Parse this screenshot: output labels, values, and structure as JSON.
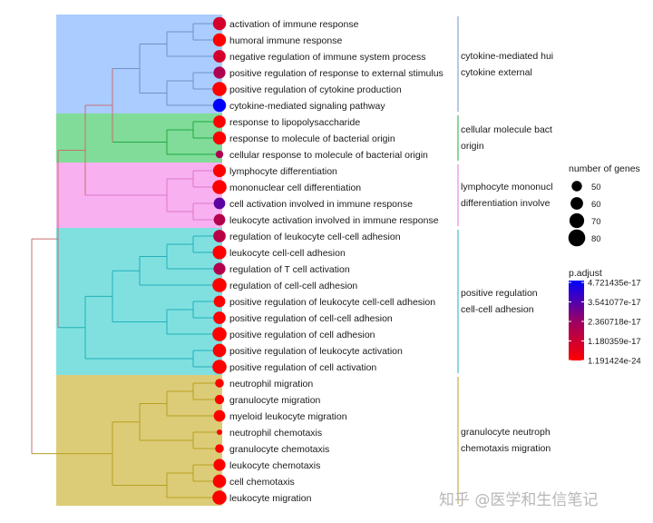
{
  "chart_data": {
    "type": "treeplot",
    "leaves": [
      {
        "label": "activation of immune response",
        "count": 75,
        "p_adjust": 8e-18
      },
      {
        "label": "humoral immune response",
        "count": 75,
        "p_adjust": 2e-20
      },
      {
        "label": "negative regulation of immune system process",
        "count": 72,
        "p_adjust": 8e-18
      },
      {
        "label": "positive regulation of response to external stimulus",
        "count": 70,
        "p_adjust": 1.5e-17
      },
      {
        "label": "positive regulation of cytokine production",
        "count": 80,
        "p_adjust": 1e-21
      },
      {
        "label": "cytokine-mediated signaling pathway",
        "count": 75,
        "p_adjust": 4.72e-17
      },
      {
        "label": "response to lipopolysaccharide",
        "count": 72,
        "p_adjust": 1e-21
      },
      {
        "label": "response to molecule of bacterial origin",
        "count": 75,
        "p_adjust": 1e-21
      },
      {
        "label": "cellular response to molecule of bacterial origin",
        "count": 50,
        "p_adjust": 1.5e-17
      },
      {
        "label": "lymphocyte differentiation",
        "count": 74,
        "p_adjust": 1e-20
      },
      {
        "label": "mononuclear cell differentiation",
        "count": 80,
        "p_adjust": 1e-20
      },
      {
        "label": "cell activation involved in immune response",
        "count": 68,
        "p_adjust": 3e-17
      },
      {
        "label": "leukocyte activation involved in immune response",
        "count": 68,
        "p_adjust": 1.4e-17
      },
      {
        "label": "regulation of leukocyte cell-cell adhesion",
        "count": 72,
        "p_adjust": 1.3e-17
      },
      {
        "label": "leukocyte cell-cell adhesion",
        "count": 78,
        "p_adjust": 1e-20
      },
      {
        "label": "regulation of T cell activation",
        "count": 70,
        "p_adjust": 1.4e-17
      },
      {
        "label": "regulation of cell-cell adhesion",
        "count": 80,
        "p_adjust": 1e-20
      },
      {
        "label": "positive regulation of leukocyte cell-cell adhesion",
        "count": 68,
        "p_adjust": 1e-21
      },
      {
        "label": "positive regulation of cell-cell adhesion",
        "count": 72,
        "p_adjust": 1e-21
      },
      {
        "label": "positive regulation of cell adhesion",
        "count": 80,
        "p_adjust": 1e-21
      },
      {
        "label": "positive regulation of leukocyte activation",
        "count": 76,
        "p_adjust": 1e-21
      },
      {
        "label": "positive regulation of cell activation",
        "count": 80,
        "p_adjust": 1e-21
      },
      {
        "label": "neutrophil migration",
        "count": 55,
        "p_adjust": 1e-22
      },
      {
        "label": "granulocyte migration",
        "count": 58,
        "p_adjust": 1e-22
      },
      {
        "label": "myeloid leukocyte migration",
        "count": 68,
        "p_adjust": 1e-22
      },
      {
        "label": "neutrophil chemotaxis",
        "count": 40,
        "p_adjust": 1e-22
      },
      {
        "label": "granulocyte chemotaxis",
        "count": 55,
        "p_adjust": 1e-22
      },
      {
        "label": "leukocyte chemotaxis",
        "count": 70,
        "p_adjust": 1e-22
      },
      {
        "label": "cell chemotaxis",
        "count": 76,
        "p_adjust": 1e-22
      },
      {
        "label": "leukocyte migration",
        "count": 80,
        "p_adjust": 1e-24
      }
    ],
    "tree": [
      [
        [
          [
            [
              [
                [
                  0,
                  1
                ],
                2
              ],
              [
                [
                  3,
                  4
                ],
                5
              ]
            ],
            [
              [
                6,
                7
              ],
              8
            ]
          ],
          [
            [
              9,
              10
            ],
            [
              11,
              12
            ]
          ]
        ],
        [
          [
            [
              [
                [
                  13,
                  14
                ],
                15
              ],
              16
            ],
            [
              [
                17,
                18
              ],
              19
            ]
          ],
          [
            20,
            21
          ]
        ]
      ],
      [
        [
          [
            [
              22,
              23
            ],
            24
          ],
          [
            25,
            26
          ]
        ],
        [
          [
            27,
            28
          ],
          29
        ]
      ]
    ],
    "clusters": [
      {
        "rows": [
          0,
          5
        ],
        "label_lines": [
          "cytokine-mediated hui",
          "cytokine external"
        ],
        "color": "#aaccff",
        "line": "#6f94c8"
      },
      {
        "rows": [
          6,
          8
        ],
        "label_lines": [
          "cellular molecule bact",
          "origin"
        ],
        "color": "#80dc98",
        "line": "#22aa44"
      },
      {
        "rows": [
          9,
          12
        ],
        "label_lines": [
          "lymphocyte mononucl",
          "differentiation involve"
        ],
        "color": "#f8b0f0",
        "line": "#dd77cc"
      },
      {
        "rows": [
          13,
          21
        ],
        "label_lines": [
          "positive regulation",
          "cell-cell adhesion"
        ],
        "color": "#80e0e0",
        "line": "#22b0b8"
      },
      {
        "rows": [
          22,
          29
        ],
        "label_lines": [
          "granulocyte neutroph",
          "chemotaxis migration"
        ],
        "color": "#dccc78",
        "line": "#b8a020"
      }
    ],
    "root_line_color": "#c87070",
    "size_legend": {
      "title": "number of genes",
      "values": [
        50,
        60,
        70,
        80
      ]
    },
    "color_legend": {
      "title": "p.adjust",
      "ticks": [
        "4.721435e-17",
        "3.541077e-17",
        "2.360718e-17",
        "1.180359e-17",
        "1.191424e-24"
      ],
      "low_color": "#ff0000",
      "high_color": "#0000ff",
      "range": [
        1.191424e-24,
        4.721435e-17
      ]
    }
  },
  "watermark": "知乎 @医学和生信笔记"
}
